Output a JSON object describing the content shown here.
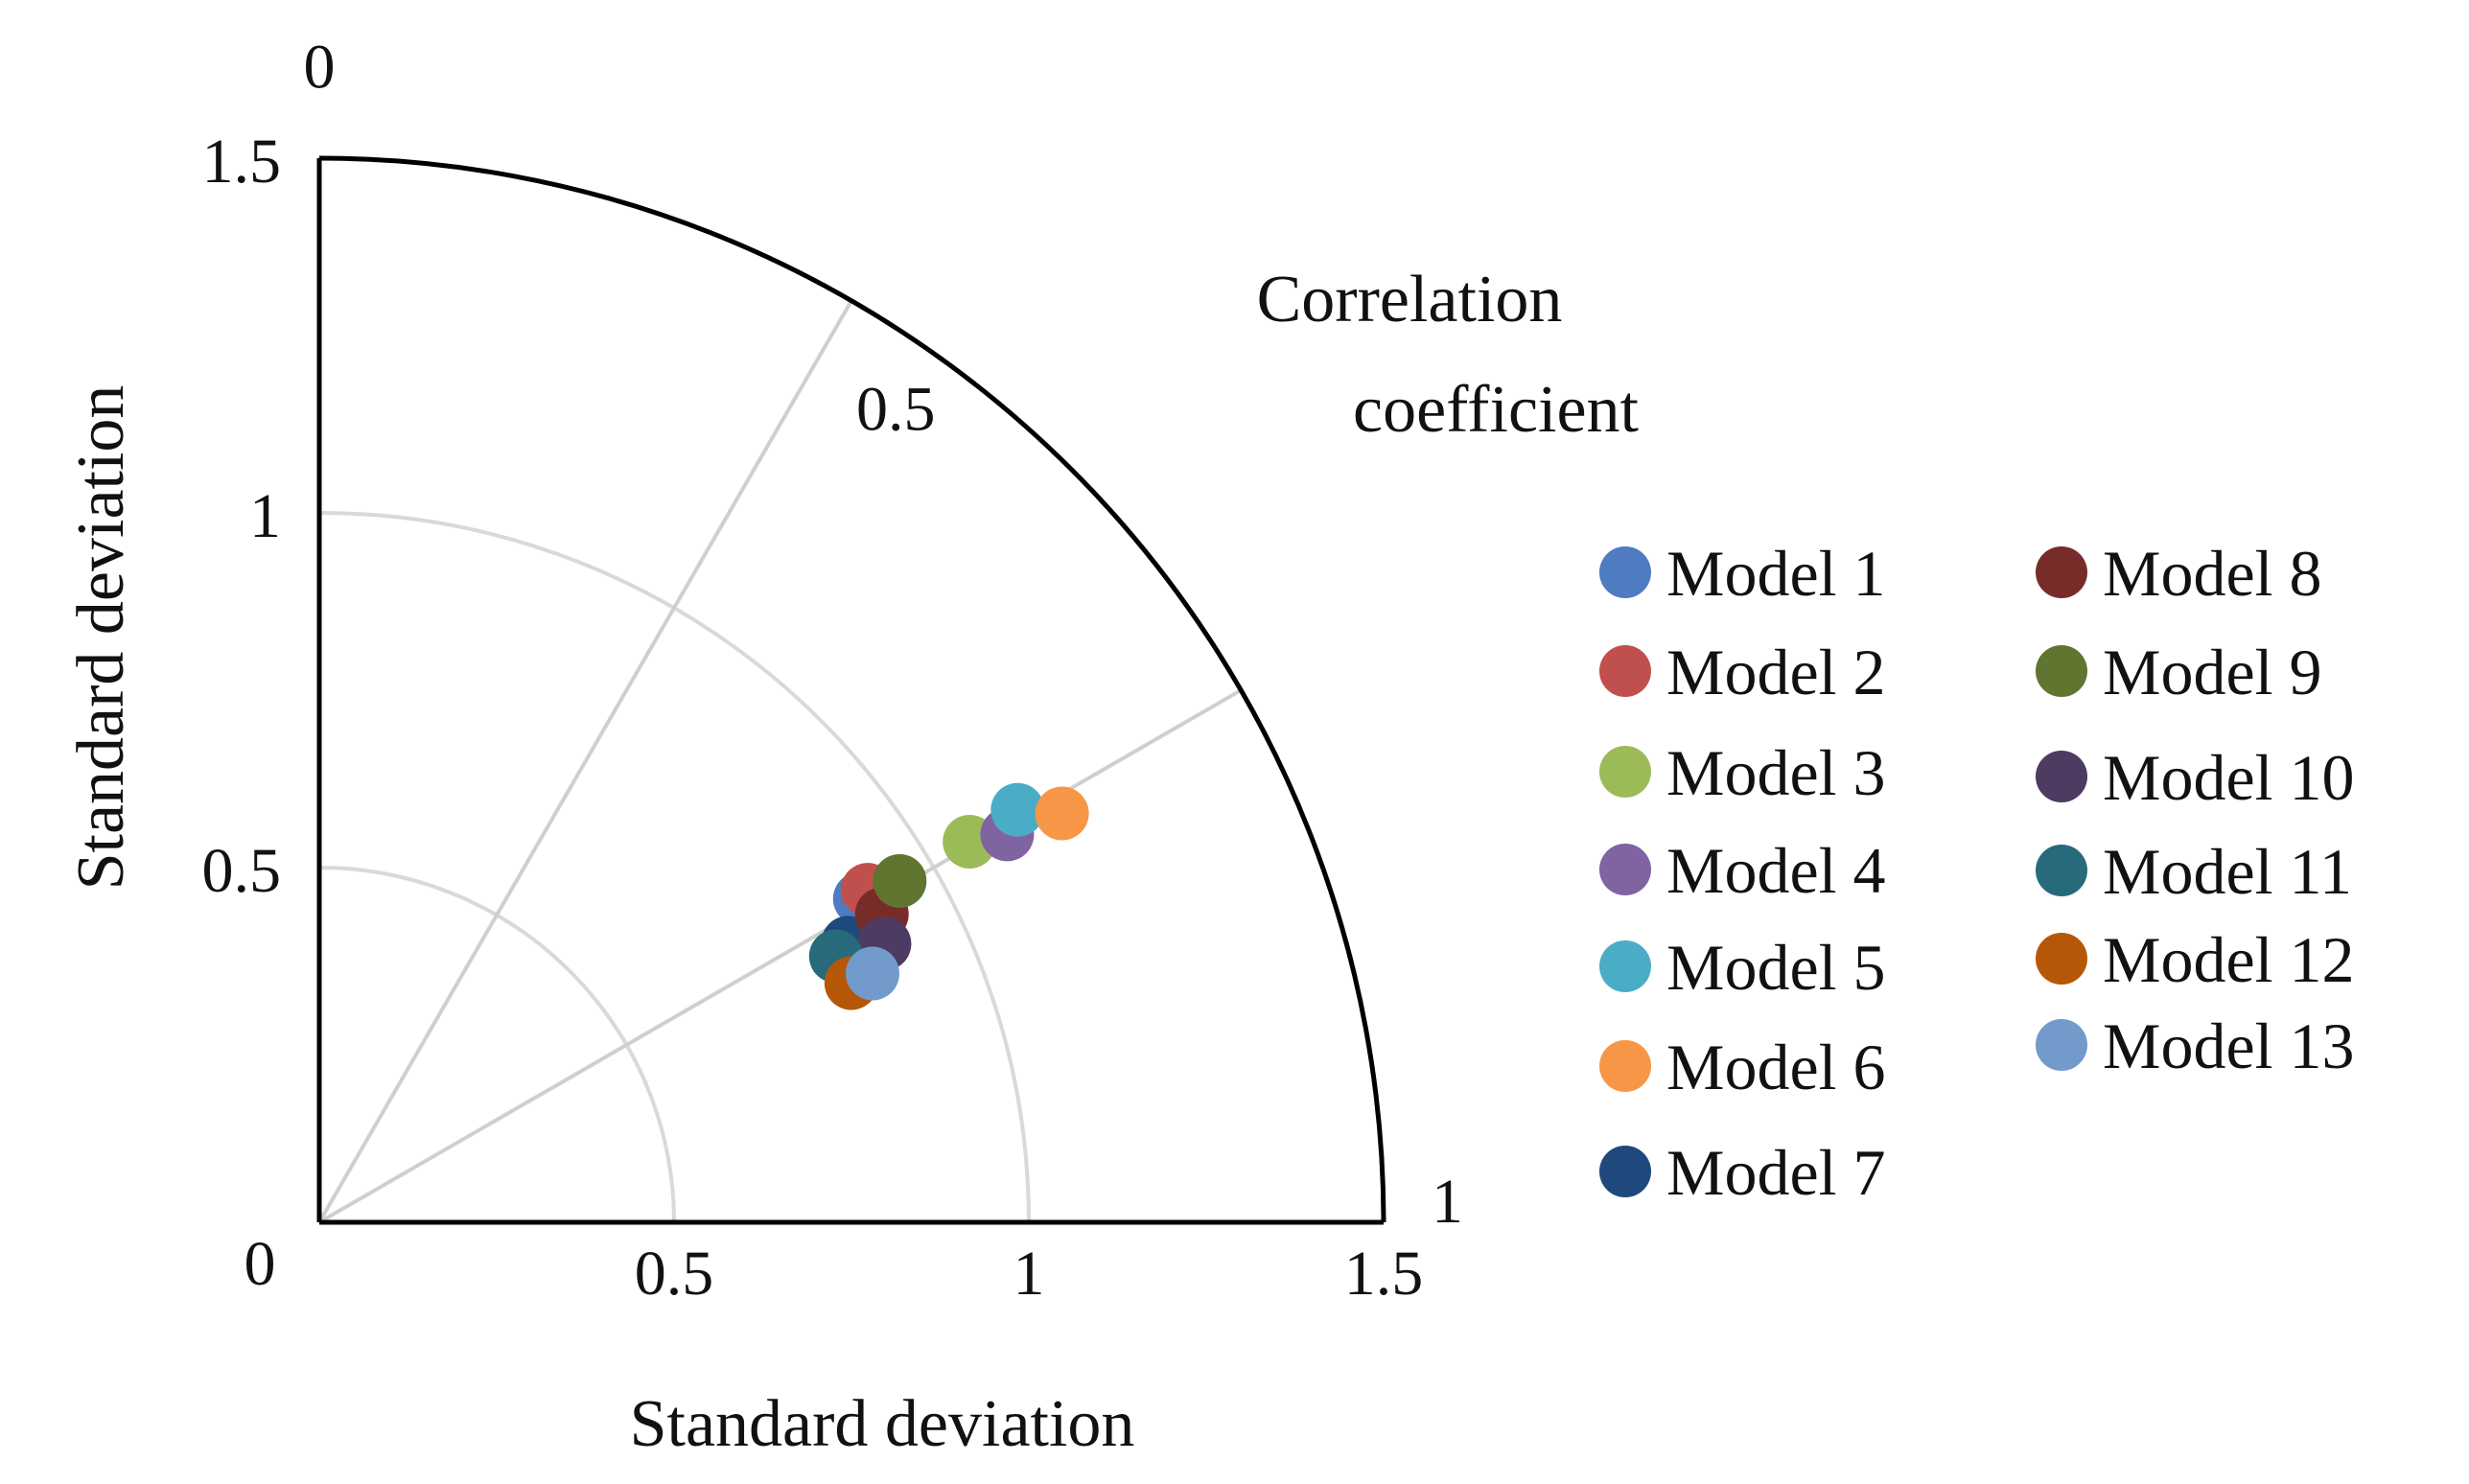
{
  "chart_data": {
    "type": "scatter",
    "subtype": "taylor-diagram",
    "xlabel": "Standard deviation",
    "ylabel": "Standard deviation",
    "angular_label": [
      "Correlation",
      "coefficient"
    ],
    "std_range": [
      0,
      1.5
    ],
    "std_ticks_x": [
      "0",
      "0.5",
      "1",
      "1.5"
    ],
    "std_ticks_y": [
      "0.5",
      "1",
      "1.5"
    ],
    "std_grid_arcs": [
      0.5,
      1.0
    ],
    "correlation_ticks": [
      {
        "value": 0,
        "label": "0"
      },
      {
        "value": 0.5,
        "label": "0.5"
      },
      {
        "value": 1,
        "label": "1"
      }
    ],
    "correlation_gridlines": [
      0.5,
      0.866
    ],
    "legend_columns": 2,
    "series": [
      {
        "name": "Model 1",
        "color": "#4F7BC0",
        "std": 0.888,
        "corr": 0.858
      },
      {
        "name": "Model 2",
        "color": "#C0504D",
        "std": 0.904,
        "corr": 0.855
      },
      {
        "name": "Model 3",
        "color": "#9BBB59",
        "std": 1.062,
        "corr": 0.863
      },
      {
        "name": "Model 4",
        "color": "#8064A2",
        "std": 1.113,
        "corr": 0.871
      },
      {
        "name": "Model 5",
        "color": "#4BACC6",
        "std": 1.143,
        "corr": 0.861
      },
      {
        "name": "Model 6",
        "color": "#F79646",
        "std": 1.195,
        "corr": 0.876
      },
      {
        "name": "Model 7",
        "color": "#1F497D",
        "std": 0.843,
        "corr": 0.884
      },
      {
        "name": "Model 8",
        "color": "#772C2A",
        "std": 0.904,
        "corr": 0.877
      },
      {
        "name": "Model 9",
        "color": "#5F7530",
        "std": 0.949,
        "corr": 0.862
      },
      {
        "name": "Model 10",
        "color": "#4D3B62",
        "std": 0.888,
        "corr": 0.897
      },
      {
        "name": "Model 11",
        "color": "#276A7C",
        "std": 0.819,
        "corr": 0.889
      },
      {
        "name": "Model 12",
        "color": "#B65708",
        "std": 0.822,
        "corr": 0.912
      },
      {
        "name": "Model 13",
        "color": "#729ACA",
        "std": 0.855,
        "corr": 0.912
      }
    ]
  }
}
